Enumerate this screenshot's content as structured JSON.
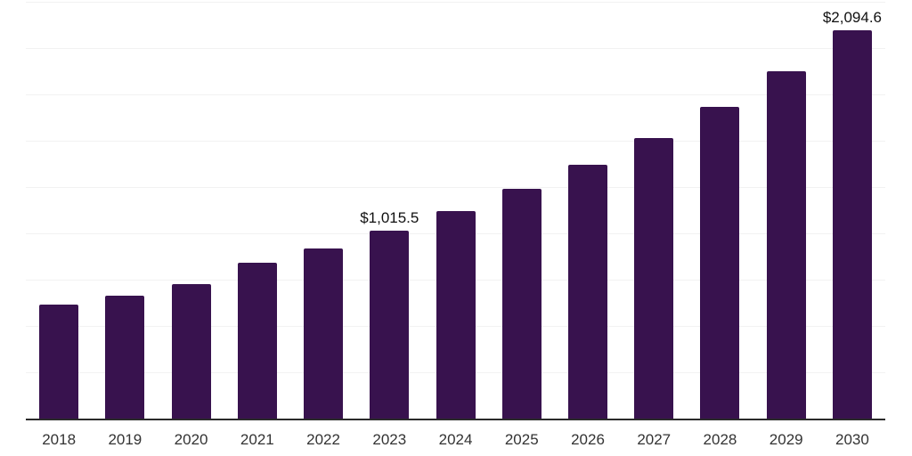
{
  "chart_data": {
    "type": "bar",
    "categories": [
      "2018",
      "2019",
      "2020",
      "2021",
      "2022",
      "2023",
      "2024",
      "2025",
      "2026",
      "2027",
      "2028",
      "2029",
      "2030"
    ],
    "values": [
      615,
      665,
      725,
      840,
      920,
      1015.5,
      1120,
      1240,
      1370,
      1515,
      1685,
      1875,
      2094.6
    ],
    "value_labels": {
      "2023": "$1,015.5",
      "2030": "$2,094.6"
    },
    "ylim": [
      0,
      2250
    ],
    "y_gridline_step": 250,
    "grid": "horizontal",
    "legend": "none",
    "x_tick_labels": [
      "2018",
      "2019",
      "2020",
      "2021",
      "2022",
      "2023",
      "2024",
      "2025",
      "2026",
      "2027",
      "2028",
      "2029",
      "2030"
    ],
    "colors": {
      "bar": "#38124E",
      "background": "#FFFFFF",
      "gridline": "#F2F2F2",
      "axis_line": "#2B2B2B",
      "tick_label": "#333333",
      "value_label": "#111111"
    }
  }
}
